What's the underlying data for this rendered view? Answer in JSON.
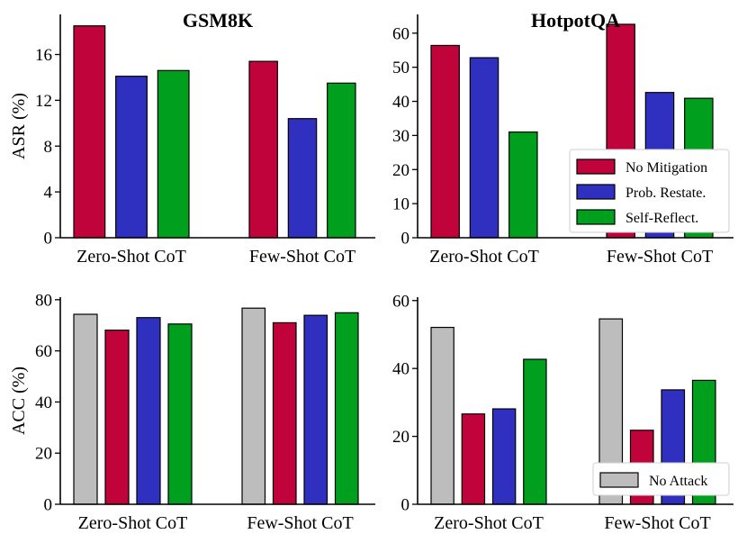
{
  "colors": {
    "No Mitigation": "#c0033b",
    "Prob. Restate.": "#3030c0",
    "Self-Reflect.": "#00a01e",
    "No Attack": "#bdbdbd"
  },
  "chart_data": [
    {
      "id": "asr-gsm8k",
      "type": "bar",
      "title": "GSM8K",
      "xlabel": "",
      "ylabel": "ASR (%)",
      "categories": [
        "Zero-Shot CoT",
        "Few-Shot CoT"
      ],
      "series": [
        {
          "name": "No Mitigation",
          "values": [
            18.5,
            15.4
          ]
        },
        {
          "name": "Prob. Restate.",
          "values": [
            14.1,
            10.4
          ]
        },
        {
          "name": "Self-Reflect.",
          "values": [
            14.6,
            13.5
          ]
        }
      ],
      "ylim": [
        0,
        19.5
      ],
      "yticks": [
        0,
        4,
        8,
        12,
        16
      ],
      "legend": null
    },
    {
      "id": "asr-hotpotqa",
      "type": "bar",
      "title": "HotpotQA",
      "xlabel": "",
      "ylabel": "",
      "categories": [
        "Zero-Shot CoT",
        "Few-Shot CoT"
      ],
      "series": [
        {
          "name": "No Mitigation",
          "values": [
            56.4,
            62.6
          ]
        },
        {
          "name": "Prob. Restate.",
          "values": [
            52.8,
            42.6
          ]
        },
        {
          "name": "Self-Reflect.",
          "values": [
            31.0,
            40.9
          ]
        }
      ],
      "ylim": [
        0,
        65.5
      ],
      "yticks": [
        0,
        10,
        20,
        30,
        40,
        50,
        60
      ],
      "legend": {
        "position": "center-right",
        "entries": [
          "No Mitigation",
          "Prob. Restate.",
          "Self-Reflect."
        ]
      }
    },
    {
      "id": "acc-gsm8k",
      "type": "bar",
      "title": "",
      "xlabel": "",
      "ylabel": "ACC (%)",
      "categories": [
        "Zero-Shot CoT",
        "Few-Shot CoT"
      ],
      "series": [
        {
          "name": "No Attack",
          "values": [
            74.3,
            76.7
          ]
        },
        {
          "name": "No Mitigation",
          "values": [
            68.1,
            71.0
          ]
        },
        {
          "name": "Prob. Restate.",
          "values": [
            73.0,
            73.9
          ]
        },
        {
          "name": "Self-Reflect.",
          "values": [
            70.5,
            74.9
          ]
        }
      ],
      "ylim": [
        0,
        81
      ],
      "yticks": [
        0,
        20,
        40,
        60,
        80
      ],
      "legend": null
    },
    {
      "id": "acc-hotpotqa",
      "type": "bar",
      "title": "",
      "xlabel": "",
      "ylabel": "",
      "categories": [
        "Zero-Shot CoT",
        "Few-Shot CoT"
      ],
      "series": [
        {
          "name": "No Attack",
          "values": [
            52.1,
            54.6
          ]
        },
        {
          "name": "No Mitigation",
          "values": [
            26.6,
            21.8
          ]
        },
        {
          "name": "Prob. Restate.",
          "values": [
            28.1,
            33.7
          ]
        },
        {
          "name": "Self-Reflect.",
          "values": [
            42.7,
            36.5
          ]
        }
      ],
      "ylim": [
        0,
        61
      ],
      "yticks": [
        0,
        20,
        40,
        60
      ],
      "legend": {
        "position": "bottom-right",
        "entries": [
          "No Attack"
        ]
      }
    }
  ]
}
